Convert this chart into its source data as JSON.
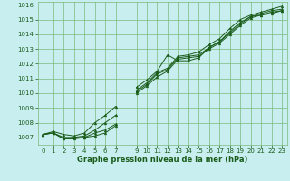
{
  "title": "Graphe pression niveau de la mer (hPa)",
  "background_color": "#c8eef0",
  "plot_bg_color": "#c8eef0",
  "grid_color": "#7ab87a",
  "line_color": "#1a5c1a",
  "marker_color": "#1a5c1a",
  "xlim": [
    -0.5,
    23.5
  ],
  "ylim": [
    1006.5,
    1016.2
  ],
  "yticks": [
    1007,
    1008,
    1009,
    1010,
    1011,
    1012,
    1013,
    1014,
    1015,
    1016
  ],
  "series": [
    [
      1007.2,
      1007.3,
      1006.9,
      1006.9,
      1007.0,
      1007.1,
      1007.3,
      1007.8,
      null,
      1010.4,
      1010.9,
      1011.5,
      1012.6,
      1012.2,
      1012.2,
      1012.4,
      1013.1,
      1013.5,
      1014.1,
      1014.7,
      1015.2,
      1015.3,
      1015.5,
      1015.6
    ],
    [
      1007.2,
      1007.3,
      1006.9,
      1007.0,
      1007.0,
      1007.3,
      1007.5,
      1007.9,
      null,
      1010.0,
      1010.5,
      1011.1,
      1011.5,
      1012.3,
      1012.4,
      1012.5,
      1013.0,
      1013.4,
      1014.0,
      1014.6,
      1015.1,
      1015.3,
      1015.4,
      1015.6
    ],
    [
      1007.2,
      1007.3,
      1007.0,
      1007.0,
      1007.1,
      1007.5,
      1008.0,
      1008.5,
      null,
      1010.1,
      1010.6,
      1011.3,
      1011.6,
      1012.4,
      1012.5,
      1012.6,
      1013.1,
      1013.5,
      1014.2,
      1014.8,
      1015.2,
      1015.4,
      1015.6,
      1015.7
    ],
    [
      1007.2,
      1007.4,
      1007.2,
      1007.1,
      1007.3,
      1008.0,
      1008.5,
      1009.1,
      null,
      1010.2,
      1010.7,
      1011.4,
      1011.7,
      1012.5,
      1012.6,
      1012.8,
      1013.3,
      1013.7,
      1014.4,
      1015.0,
      1015.3,
      1015.5,
      1015.7,
      1015.9
    ]
  ]
}
